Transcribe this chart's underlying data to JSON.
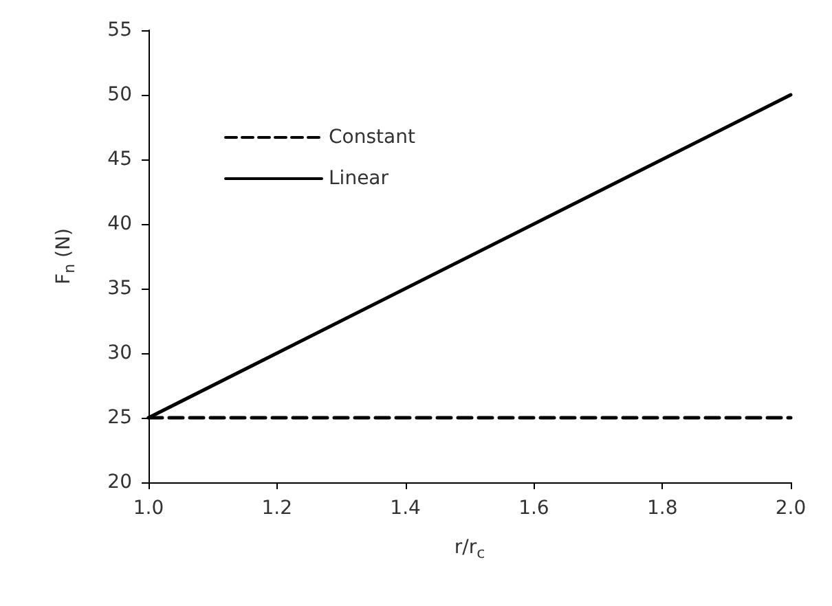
{
  "chart_data": {
    "type": "line",
    "xlabel": "r/r$_{c}$",
    "ylabel": "F$_{n}$ (N)",
    "xlim": [
      1.0,
      2.0
    ],
    "xticks": [
      {
        "value": 1,
        "label": "1.0"
      },
      {
        "value": 1.2,
        "label": "1.2"
      },
      {
        "value": 1.4,
        "label": "1.4"
      },
      {
        "value": 1.6,
        "label": "1.6"
      },
      {
        "value": 1.8,
        "label": "1.8"
      },
      {
        "value": 2,
        "label": "2.0"
      }
    ],
    "ylim": [
      20,
      55
    ],
    "yticks": [
      20,
      25,
      30,
      35,
      40,
      45,
      50,
      55
    ],
    "x": [
      1.0,
      2.0
    ],
    "series": [
      {
        "name": "Constant",
        "color": "#000000",
        "values": [
          25,
          25
        ],
        "line_style": "dashed"
      },
      {
        "name": "Linear",
        "color": "#000000",
        "values": [
          25,
          50
        ],
        "line_style": "solid"
      }
    ],
    "grid": false,
    "legend": "top left",
    "marker": "none"
  }
}
